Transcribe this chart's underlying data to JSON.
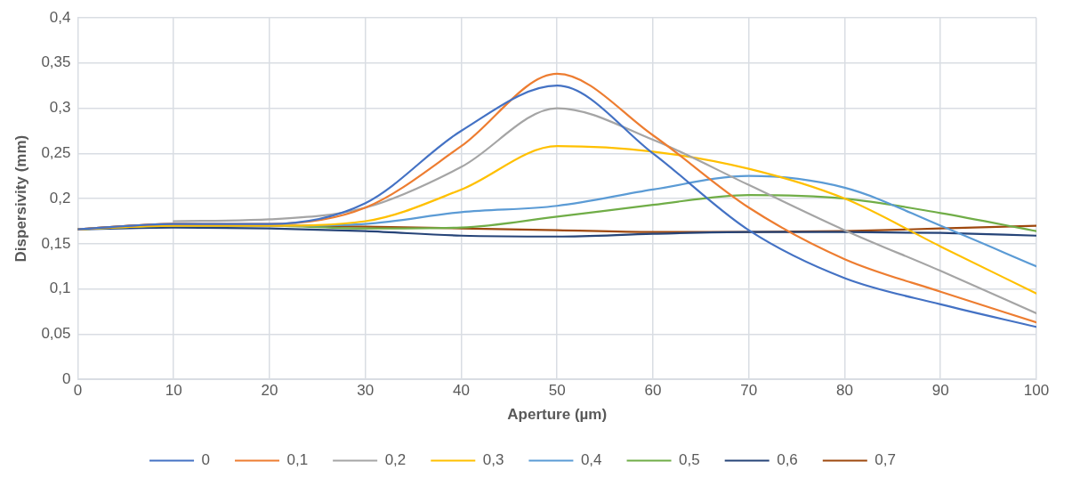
{
  "chart_data": {
    "type": "line",
    "xlabel": "Aperture (µm)",
    "ylabel": "Dispersivity (mm)",
    "x": [
      0,
      10,
      20,
      30,
      40,
      50,
      60,
      70,
      80,
      90,
      100
    ],
    "xlim": [
      0,
      100
    ],
    "xticks": [
      0,
      10,
      20,
      30,
      40,
      50,
      60,
      70,
      80,
      90,
      100
    ],
    "ylim": [
      0,
      0.4
    ],
    "yticks": [
      0,
      {
        "value": 0.05,
        "label": "0,05"
      },
      {
        "value": 0.1,
        "label": "0,1"
      },
      {
        "value": 0.15,
        "label": "0,15"
      },
      {
        "value": 0.2,
        "label": "0,2"
      },
      {
        "value": 0.25,
        "label": "0,25"
      },
      {
        "value": 0.3,
        "label": "0,3"
      },
      {
        "value": 0.35,
        "label": "0,35"
      },
      {
        "value": 0.4,
        "label": "0,4"
      }
    ],
    "grid": true,
    "legend": "bottom",
    "marker": "none",
    "line_style": "solid",
    "series": [
      {
        "name": "0",
        "color": "#4472c4",
        "values": [
          0.166,
          0.172,
          0.172,
          0.195,
          0.275,
          0.325,
          0.25,
          0.165,
          0.112,
          0.083,
          0.058
        ]
      },
      {
        "name": "0,1",
        "color": "#ed7d31",
        "values": [
          0.166,
          0.172,
          0.172,
          0.19,
          0.258,
          0.338,
          0.27,
          0.19,
          0.133,
          0.097,
          0.063
        ]
      },
      {
        "name": "0,2",
        "color": "#a5a5a5",
        "values": [
          null,
          0.175,
          0.177,
          0.19,
          0.235,
          0.3,
          0.265,
          0.215,
          0.165,
          0.12,
          0.073
        ]
      },
      {
        "name": "0,3",
        "color": "#ffc000",
        "values": [
          0.166,
          0.17,
          0.17,
          0.175,
          0.21,
          0.258,
          0.252,
          0.233,
          0.2,
          0.147,
          0.095
        ]
      },
      {
        "name": "0,4",
        "color": "#5b9bd5",
        "values": [
          0.166,
          0.17,
          0.17,
          0.172,
          0.185,
          0.192,
          0.21,
          0.225,
          0.212,
          0.17,
          0.125
        ]
      },
      {
        "name": "0,5",
        "color": "#70ad47",
        "values": [
          0.166,
          0.17,
          0.17,
          0.167,
          0.168,
          0.18,
          0.193,
          0.204,
          0.2,
          0.184,
          0.164
        ]
      },
      {
        "name": "0,6",
        "color": "#264478",
        "values": [
          0.166,
          0.168,
          0.167,
          0.164,
          0.159,
          0.158,
          0.161,
          0.163,
          0.163,
          0.162,
          0.159
        ]
      },
      {
        "name": "0,7",
        "color": "#9e480e",
        "values": [
          0.166,
          0.172,
          0.17,
          0.169,
          0.167,
          0.165,
          0.163,
          0.163,
          0.164,
          0.167,
          0.17
        ]
      }
    ]
  }
}
